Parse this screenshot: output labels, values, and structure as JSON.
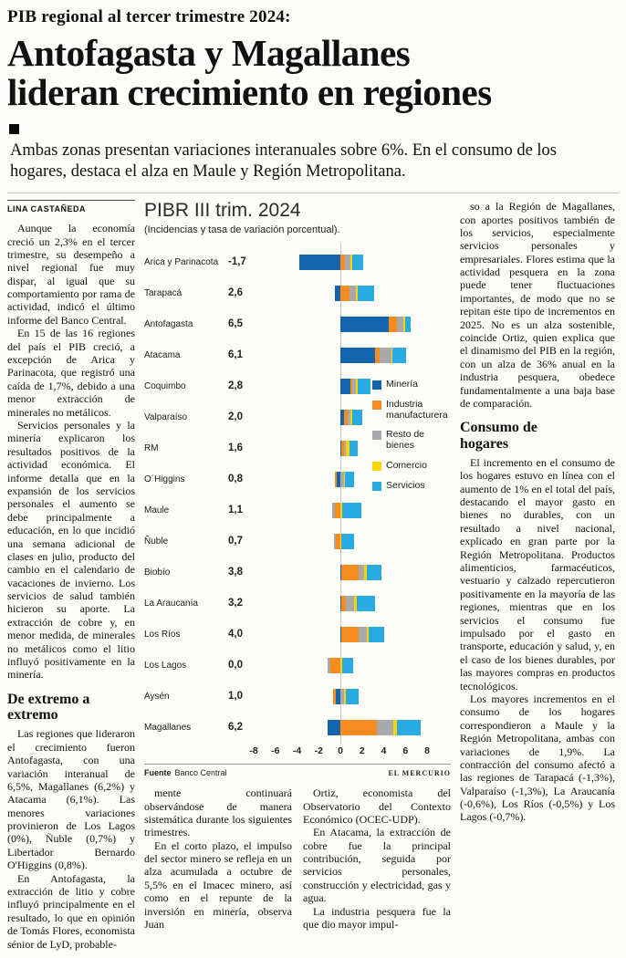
{
  "header": {
    "kicker": "PIB regional al tercer trimestre 2024:",
    "headline_lines": [
      "Antofagasta y Magallanes",
      "lideran crecimiento en regiones"
    ],
    "deck": "Ambas zonas presentan variaciones interanuales sobre 6%. En el consumo de los hogares, destaca el alza en Maule y Región Metropolitana."
  },
  "byline": "LINA CASTAÑEDA",
  "columns": {
    "left": {
      "paragraphs": [
        "Aunque la economía creció un 2,3% en el tercer trimestre, su desempeño a nivel regional fue muy dispar, al igual que su comportamiento por rama de actividad, indicó el último informe del Banco Central.",
        "En 15 de las 16 regiones del país el PIB creció, a excepción de Arica y Parinacota, que registró una caída de 1,7%, debido a una menor extracción de minerales no metálicos.",
        "Servicios personales y la minería explicaron los resultados positivos de la actividad económica. El informe detalla que en la expansión de los servicios personales el aumento se debe principalmente a educación, en lo que incidió una semana adicional de clases en julio, producto del cambio en el calendario de vacaciones de invierno. Los servicios de salud también hicieron su aporte. La extracción de cobre y, en menor medida, de minerales no metálicos como el litio influyó positivamente en la minería."
      ],
      "subhead": "De extremo a extremo",
      "paragraphs2": [
        "Las regiones que lideraron el crecimiento fueron Antofagasta, con una variación interanual de 6,5%, Magallanes (6,2%) y Atacama (6,1%). Las menores variaciones provinieron de Los Lagos (0%), Ñuble (0,7%) y Libertador Bernardo O'Higgins (0,8%).",
        "En Antofagasta, la extracción de litio y cobre influyó principalmente en el resultado, lo que en opinión de Tomás Flores, economista sénior de LyD, probable-"
      ]
    },
    "mid1": {
      "paragraphs": [
        "mente continuará observándose de manera sistemática durante los siguientes trimestres.",
        "En el corto plazo, el impulso del sector minero se refleja en un alza acumulada a octubre de 5,5% en el Imacec minero, así como en el repunte de la inversión en minería, observa Juan"
      ]
    },
    "mid2": {
      "paragraphs": [
        "Ortiz, economista del Observatorio del Contexto Económico (OCEC-UDP).",
        "En Atacama, la extracción de cobre fue la principal contribución, seguida por servicios personales, construcción y electricidad, gas y agua.",
        "La industria pesquera fue la que dio mayor impul-"
      ]
    },
    "right": {
      "paragraphs": [
        "so a la Región de Magallanes, con aportes positivos también de los servicios, especialmente servicios personales y empresariales. Flores estima que la actividad pesquera en la zona puede tener fluctuaciones importantes, de modo que no se repitan este tipo de incrementos en 2025. No es un alza sostenible, coincide Ortiz, quien explica que el dinamismo del PIB en la región, con un alza de 36% anual en la industria pesquera, obedece fundamentalmente a una baja base de comparación."
      ],
      "subhead": "Consumo de hogares",
      "paragraphs2": [
        "El incremento en el consumo de los hogares estuvo en línea con el aumento de 1% en el total del país, destacando el mayor gasto en bienes no durables, con un resultado a nivel nacional, explicado en gran parte por la Región Metropolitana. Productos alimenticios, farmacéuticos, vestuario y calzado repercutieron positivamente en la mayoría de las regiones, mientras que en los servicios el consumo fue impulsado por el gasto en transporte, educación y salud, y, en el caso de los bienes durables, por las mayores compras en productos tecnológicos.",
        "Los mayores incrementos en el consumo de los hogares correspondieron a Maule y la Región Metropolitana, ambas con variaciones de 1,9%. La contracción del consumo afectó a las regiones de Tarapacá (-1,3%), Valparaíso (-1,3%), La Araucanía (-0,6%), Los Ríos (-0,5%) y Los Lagos (-0,7%)."
      ]
    }
  },
  "chart_data": {
    "type": "bar",
    "orientation": "horizontal",
    "stacked": true,
    "title": "PIBR III trim. 2024",
    "subtitle": "(Incidencias y tasa de variación porcentual).",
    "xlim": [
      -8,
      8
    ],
    "xticks": [
      -8,
      -6,
      -4,
      -2,
      0,
      2,
      4,
      6,
      8
    ],
    "legend": [
      {
        "label": "Minería",
        "color": "#1565ad"
      },
      {
        "label": "Industria manufacturera",
        "color": "#f68b1f"
      },
      {
        "label": "Resto de bienes",
        "color": "#a8a9ad"
      },
      {
        "label": "Comercio",
        "color": "#ffd400"
      },
      {
        "label": "Servicios",
        "color": "#29abe2"
      }
    ],
    "categories": [
      "Arica y Parinacota",
      "Tarapacá",
      "Antofagasta",
      "Atacama",
      "Coquimbo",
      "Valparaíso",
      "RM",
      "O´Higgins",
      "Maule",
      "Ñuble",
      "Biobío",
      "La Araucanía",
      "Los Ríos",
      "Los Lagos",
      "Aysén",
      "Magallanes"
    ],
    "totals": [
      "-1,7",
      "2,6",
      "6,5",
      "6,1",
      "2,8",
      "2,0",
      "1,6",
      "0,8",
      "1,1",
      "0,7",
      "3,8",
      "3,2",
      "4,0",
      "0,0",
      "1,0",
      "6,2"
    ],
    "series": [
      {
        "name": "Minería",
        "values": [
          -3.8,
          -0.5,
          4.5,
          3.2,
          0.9,
          0.3,
          0.1,
          -0.3,
          0.0,
          0.0,
          0.1,
          0.1,
          0.1,
          0.0,
          -0.4,
          -1.2
        ]
      },
      {
        "name": "Industria manufacturera",
        "values": [
          0.4,
          0.8,
          0.7,
          0.4,
          0.2,
          0.4,
          0.2,
          -0.2,
          -0.5,
          -0.4,
          1.6,
          0.4,
          1.6,
          -0.9,
          -0.3,
          3.4
        ]
      },
      {
        "name": "Resto de bienes",
        "values": [
          0.5,
          0.6,
          0.6,
          1.1,
          0.3,
          0.2,
          0.2,
          0.3,
          -0.3,
          -0.2,
          0.5,
          0.8,
          0.7,
          -0.3,
          0.3,
          1.5
        ]
      },
      {
        "name": "Comercio",
        "values": [
          0.2,
          0.2,
          0.2,
          0.1,
          0.2,
          0.2,
          0.3,
          0.1,
          0.2,
          0.1,
          0.2,
          0.2,
          0.2,
          0.2,
          0.2,
          0.3
        ]
      },
      {
        "name": "Servicios",
        "values": [
          1.0,
          1.5,
          0.5,
          1.3,
          1.2,
          0.9,
          0.8,
          0.9,
          1.7,
          1.2,
          1.4,
          1.7,
          1.4,
          1.0,
          1.2,
          2.2
        ]
      }
    ],
    "source_label": "Fuente",
    "source": "Banco Central",
    "credit": "EL MERCURIO"
  }
}
